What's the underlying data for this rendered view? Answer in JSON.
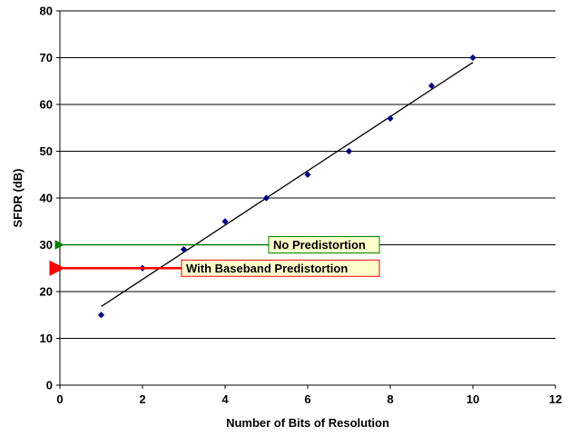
{
  "chart_data": {
    "type": "scatter",
    "title": "",
    "xlabel": "Number of Bits of Resolution",
    "ylabel": "SFDR (dB)",
    "xlim": [
      0,
      12
    ],
    "ylim": [
      0,
      80
    ],
    "x_ticks": [
      0,
      2,
      4,
      6,
      8,
      10,
      12
    ],
    "y_ticks": [
      0,
      10,
      20,
      30,
      40,
      50,
      60,
      70,
      80
    ],
    "grid": "horizontal",
    "legend": "none",
    "series": [
      {
        "x": [
          1,
          2,
          3,
          4,
          5,
          6,
          7,
          8,
          9,
          10
        ],
        "y": [
          15,
          25,
          29,
          35,
          40,
          45,
          50,
          57,
          64,
          70
        ],
        "marker": "diamond",
        "color": "#000080"
      }
    ],
    "trendline": {
      "type": "linear",
      "x": [
        1,
        10
      ],
      "y": [
        16.8,
        69
      ],
      "color": "#000000"
    },
    "annotations": [
      {
        "text": "No Predistortion",
        "y": 30,
        "arrow_color": "#008000",
        "box_border": "#008000",
        "box_fill": "#ffffcc"
      },
      {
        "text": "With Baseband Predistortion",
        "y": 25,
        "arrow_color": "#ff0000",
        "box_border": "#ff0000",
        "box_fill": "#ffffcc"
      }
    ]
  }
}
